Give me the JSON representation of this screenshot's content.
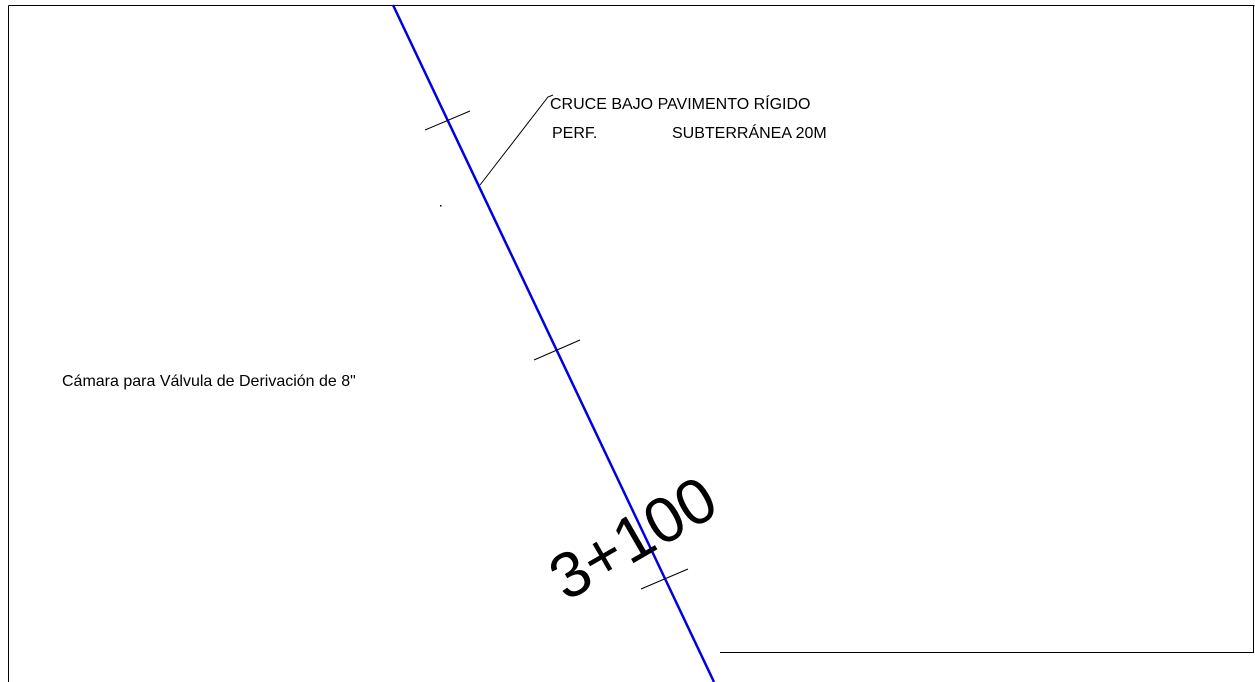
{
  "annotations": {
    "crossing_line1": "CRUCE BAJO PAVIMENTO RÍGIDO",
    "crossing_line2a": "PERF.",
    "crossing_line2b": "SUBTERRÁNEA 20M",
    "chamber": "Cámara para Válvula de Derivación de 8\"",
    "station": "3+100"
  }
}
